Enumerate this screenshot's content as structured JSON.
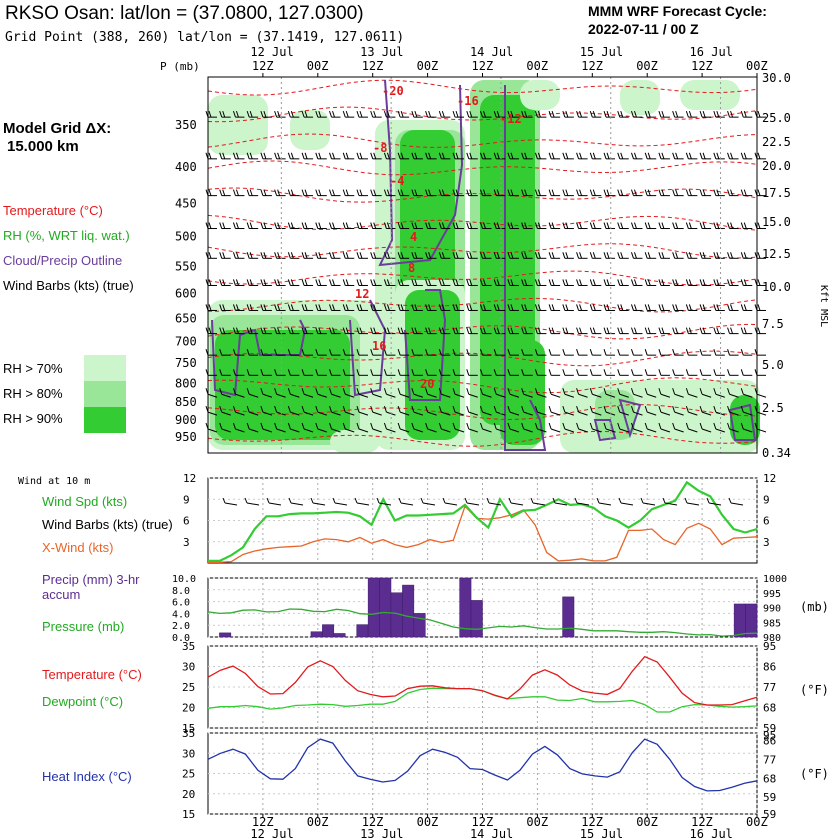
{
  "header": {
    "title": "RKSO Osan:  lat/lon = (37.0800, 127.0300)",
    "grid_point": "Grid Point (388, 260) lat/lon = (37.1419, 127.0611)",
    "cycle_title": "MMM WRF Forecast Cycle:",
    "cycle_value": "2022-07-11 / 00  Z"
  },
  "left_panel": {
    "model_grid_line1": "Model Grid ΔX:",
    "model_grid_line2": "15.000 km",
    "legend": {
      "temperature": "Temperature (°C)",
      "rh": "RH (%, WRT liq. wat.)",
      "cloud": "Cloud/Precip Outline",
      "wind": "Wind Barbs (kts) (true)"
    },
    "rh_keys": [
      "RH > 70%",
      "RH > 80%",
      "RH > 90%"
    ]
  },
  "colors": {
    "rh70": "#ccf5cc",
    "rh80": "#99e699",
    "rh90": "#33cc33",
    "temperature": "#e31a1c",
    "cloud": "#6a3d9a",
    "wind_speed": "#33cc33",
    "cross_wind": "#e8652a",
    "precip": "#5c2d91",
    "pressure": "#33aa33",
    "dewpoint": "#33cc33",
    "heat_index": "#2233aa"
  },
  "time_axis": {
    "top_days": [
      "12 Jul",
      "13 Jul",
      "14 Jul",
      "15 Jul",
      "16 Jul"
    ],
    "hours": [
      "12Z",
      "00Z",
      "12Z",
      "00Z",
      "12Z",
      "00Z",
      "12Z",
      "00Z",
      "12Z",
      "00Z"
    ],
    "bottom_days": [
      "12 Jul",
      "13 Jul",
      "14 Jul",
      "15 Jul",
      "16 Jul"
    ]
  },
  "chart_data": [
    {
      "type": "heatmap",
      "xlabel": "",
      "ylabel": "P (mb)",
      "y_right_label": "Kft MSL",
      "pressure_levels": [
        "350",
        "400",
        "450",
        "500",
        "550",
        "600",
        "650",
        "700",
        "750",
        "800",
        "850",
        "900",
        "950"
      ],
      "height_ticks_kft": [
        "30.0",
        "25.0",
        "22.5",
        "20.0",
        "17.5",
        "15.0",
        "12.5",
        "10.0",
        "7.5",
        "5.0",
        "2.5",
        "0.34"
      ],
      "temperature_labels": [
        "-20",
        "-16",
        "-12",
        "-8",
        "-4",
        "4",
        "8",
        "12",
        "16",
        "20"
      ]
    },
    {
      "type": "line",
      "title": "Wind at 10 m",
      "series": [
        {
          "name": "Wind Spd (kts)",
          "values": [
            0.3,
            0.3,
            1.1,
            2.2,
            4.8,
            6.6,
            6.6,
            6.9,
            7.0,
            7.0,
            7.1,
            7.2,
            7.1,
            6.6,
            5.4,
            9.0,
            6.0,
            6.7,
            6.7,
            6.8,
            6.9,
            7.0,
            8.2,
            6.4,
            5.0,
            9.0,
            6.5,
            7.4,
            7.5,
            8.2,
            9.0,
            8.2,
            8.3,
            7.8,
            6.6,
            6.0,
            5.0,
            6.0,
            7.6,
            8.2,
            8.8,
            11.4,
            10.2,
            9.4,
            6.8,
            4.8,
            4.3,
            4.8
          ]
        },
        {
          "name": "X-Wind (kts)",
          "values": [
            0.1,
            0.1,
            0.2,
            1.2,
            1.7,
            2.0,
            2.2,
            2.3,
            2.4,
            3.0,
            3.4,
            3.3,
            3.0,
            3.6,
            2.8,
            3.3,
            2.6,
            2.2,
            2.6,
            3.3,
            2.9,
            3.2,
            8.0,
            6.3,
            6.2,
            6.4,
            6.8,
            7.5,
            5.4,
            1.5,
            0.3,
            0.4,
            0.6,
            0.3,
            0.3,
            0.8,
            4.6,
            4.6,
            4.8,
            3.3,
            2.6,
            4.9,
            5.6,
            4.8,
            2.6,
            3.5,
            3.6,
            3.7
          ]
        }
      ],
      "ylim": [
        0,
        12
      ],
      "y_ticks": [
        "3",
        "6",
        "9",
        "12"
      ]
    },
    {
      "type": "bar",
      "series": [
        {
          "name": "Precip (mm) 3-hr accum",
          "values": [
            0,
            0.7,
            0,
            0,
            0,
            0,
            0,
            0,
            0,
            0.9,
            2.1,
            0.6,
            0,
            2.1,
            10.0,
            10.0,
            7.5,
            8.8,
            4.0,
            0,
            0,
            0,
            10.0,
            6.2,
            0,
            0,
            0,
            0,
            0,
            0,
            0,
            6.8,
            0,
            0,
            0,
            0,
            0,
            0,
            0,
            0,
            0,
            0,
            0,
            0,
            0,
            0,
            5.6,
            5.6
          ]
        },
        {
          "name": "Pressure (mb)",
          "values": [
            988.5,
            988.0,
            988.2,
            989.1,
            989.2,
            988.5,
            988.6,
            989.5,
            989.4,
            988.7,
            988.6,
            989.4,
            989.0,
            987.9,
            987.7,
            988.3,
            988.1,
            987.1,
            986.4,
            985.8,
            984.6,
            983.4,
            982.8,
            982.6,
            983.1,
            983.6,
            983.4,
            983.8,
            983.2,
            982.7,
            982.7,
            983.0,
            982.6,
            982.1,
            982.1,
            982.1,
            981.8,
            981.6,
            981.6,
            981.8,
            981.5,
            981.0,
            980.7,
            980.8,
            980.3,
            980.5,
            981.2,
            981.3
          ]
        }
      ],
      "ylim": [
        0,
        10
      ],
      "y_ticks_left": [
        "0.0",
        "2.0",
        "4.0",
        "6.0",
        "8.0",
        "10.0"
      ],
      "y_ticks_right": [
        "980",
        "985",
        "990",
        "995",
        "1000"
      ],
      "y_right_label": "(mb)"
    },
    {
      "type": "line",
      "series": [
        {
          "name": "Temperature (°C)",
          "values": [
            27.4,
            29.1,
            30.1,
            28.3,
            25.1,
            23.3,
            23.4,
            26.1,
            29.9,
            31.4,
            30.0,
            26.6,
            24.1,
            23.2,
            22.6,
            22.8,
            24.6,
            25.2,
            25.3,
            24.8,
            24.6,
            24.6,
            24.1,
            23.0,
            22.1,
            24.5,
            27.9,
            29.2,
            27.9,
            25.5,
            24.0,
            23.5,
            23.2,
            24.6,
            28.8,
            32.4,
            31.1,
            27.4,
            23.5,
            21.2,
            20.6,
            20.6,
            20.7,
            21.6,
            22.5
          ]
        },
        {
          "name": "Dewpoint (°C)",
          "values": [
            19.8,
            20.2,
            20.2,
            20.5,
            20.2,
            19.6,
            19.9,
            20.5,
            20.6,
            20.8,
            20.7,
            20.3,
            20.5,
            20.8,
            20.8,
            21.5,
            23.5,
            24.4,
            24.7,
            24.6,
            24.6,
            24.6,
            24.1,
            22.9,
            22.1,
            22.4,
            22.6,
            22.6,
            21.8,
            21.7,
            22.2,
            21.4,
            21.4,
            21.5,
            21.7,
            20.7,
            18.9,
            18.9,
            20.2,
            20.7,
            20.6,
            20.3,
            20.1,
            20.2,
            20.4
          ]
        }
      ],
      "ylim": [
        15,
        35
      ],
      "y_ticks_left": [
        "15",
        "20",
        "25",
        "30",
        "35"
      ],
      "y_ticks_right": [
        "59",
        "68",
        "77",
        "86",
        "95"
      ],
      "y_right_label": "(°F)"
    },
    {
      "type": "line",
      "series": [
        {
          "name": "Heat Index (°C)",
          "values": [
            28.5,
            30.0,
            31.0,
            29.8,
            25.8,
            23.7,
            23.6,
            26.2,
            31.4,
            33.5,
            32.5,
            28.1,
            24.4,
            23.6,
            22.9,
            23.3,
            25.6,
            29.4,
            31.0,
            30.2,
            29.0,
            26.2,
            26.0,
            24.6,
            23.4,
            25.8,
            29.8,
            31.7,
            29.6,
            26.2,
            24.9,
            24.4,
            24.1,
            25.4,
            30.1,
            33.5,
            32.2,
            28.5,
            24.0,
            21.8,
            20.7,
            20.8,
            21.6,
            22.6,
            23.2
          ]
        }
      ],
      "ylim": [
        15,
        35
      ],
      "y_ticks_left": [
        "15",
        "20",
        "25",
        "30",
        "35"
      ],
      "y_ticks_right": [
        "59",
        "68",
        "77",
        "86"
      ],
      "y_right_label": "(°F)"
    }
  ]
}
